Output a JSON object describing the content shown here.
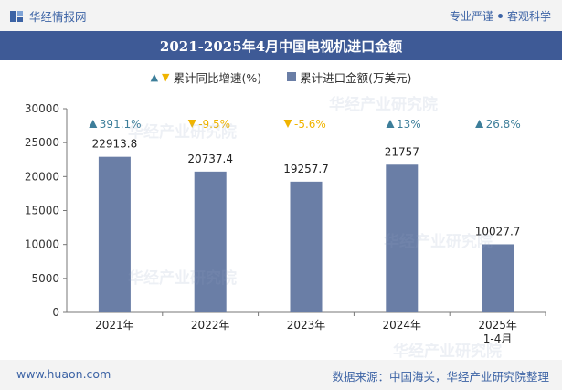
{
  "header": {
    "brand": "华经情报网",
    "tagline_left": "专业严谨",
    "tagline_right": "客观科学"
  },
  "legend": {
    "growth_label": "累计同比增速(%)",
    "amount_label": "累计进口金额(万美元)"
  },
  "footer": {
    "website": "www.huaon.com",
    "source": "数据来源：中国海关，华经产业研究院整理"
  },
  "watermark": "华经产业研究院",
  "colors": {
    "bar": "#6a7ea6",
    "up": "#3d7e9a",
    "down": "#f0b400",
    "title_bg": "#3e5a96"
  },
  "chart_data": {
    "type": "bar",
    "title": "2021-2025年4月中国电视机进口金额",
    "categories": [
      "2021年",
      "2022年",
      "2023年",
      "2024年",
      "2025年\n1-4月"
    ],
    "series": [
      {
        "name": "累计进口金额(万美元)",
        "values": [
          22913.8,
          20737.4,
          19257.7,
          21757,
          10027.7
        ]
      },
      {
        "name": "累计同比增速(%)",
        "values": [
          391.1,
          -9.5,
          -5.6,
          13,
          26.8
        ]
      }
    ],
    "value_labels": [
      "22913.8",
      "20737.4",
      "19257.7",
      "21757",
      "10027.7"
    ],
    "growth_labels": [
      "391.1%",
      "-9.5%",
      "-5.6%",
      "13%",
      "26.8%"
    ],
    "ylim": [
      0,
      30000
    ],
    "yticks": [
      "0",
      "5000",
      "10000",
      "15000",
      "20000",
      "25000",
      "30000"
    ],
    "grid": false,
    "legend_position": "top"
  }
}
